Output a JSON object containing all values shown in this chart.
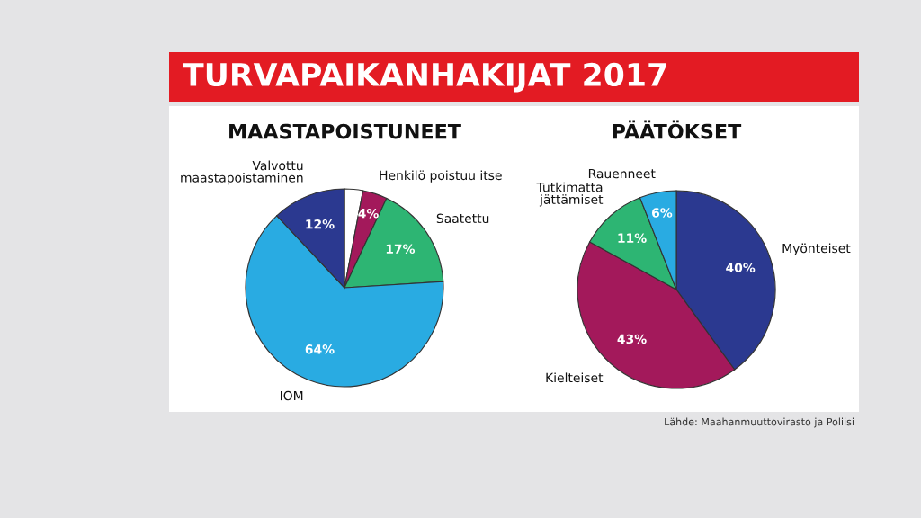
{
  "chart_data": [
    {
      "type": "pie",
      "title": "TURVAPAIKANHAKIJAT 2017",
      "subtitle": "MAASTAPOISTUNEET",
      "categories": [
        null,
        "Henkilö poistuu itse",
        "Saatettu",
        "IOM",
        "Valvottu\nmaastapoistaminen"
      ],
      "values": [
        3,
        4,
        17,
        64,
        12
      ],
      "colors": [
        "#ffffff",
        "#a3195b",
        "#2db573",
        "#29abe2",
        "#2b3990"
      ],
      "value_labels": [
        null,
        "4%",
        "17%",
        "64%",
        "12%"
      ]
    },
    {
      "type": "pie",
      "subtitle": "PÄÄTÖKSET",
      "categories": [
        "Myönteiset",
        "Kielteiset",
        "Tutkimatta\njättämiset",
        "Rauenneet"
      ],
      "values": [
        40,
        43,
        11,
        6
      ],
      "colors": [
        "#2b3990",
        "#a3195b",
        "#2db573",
        "#29abe2"
      ],
      "value_labels": [
        "40%",
        "43%",
        "11%",
        "6%"
      ],
      "annotations": [
        "Lähde: Maahanmuuttovirasto ja Poliisi"
      ]
    }
  ]
}
